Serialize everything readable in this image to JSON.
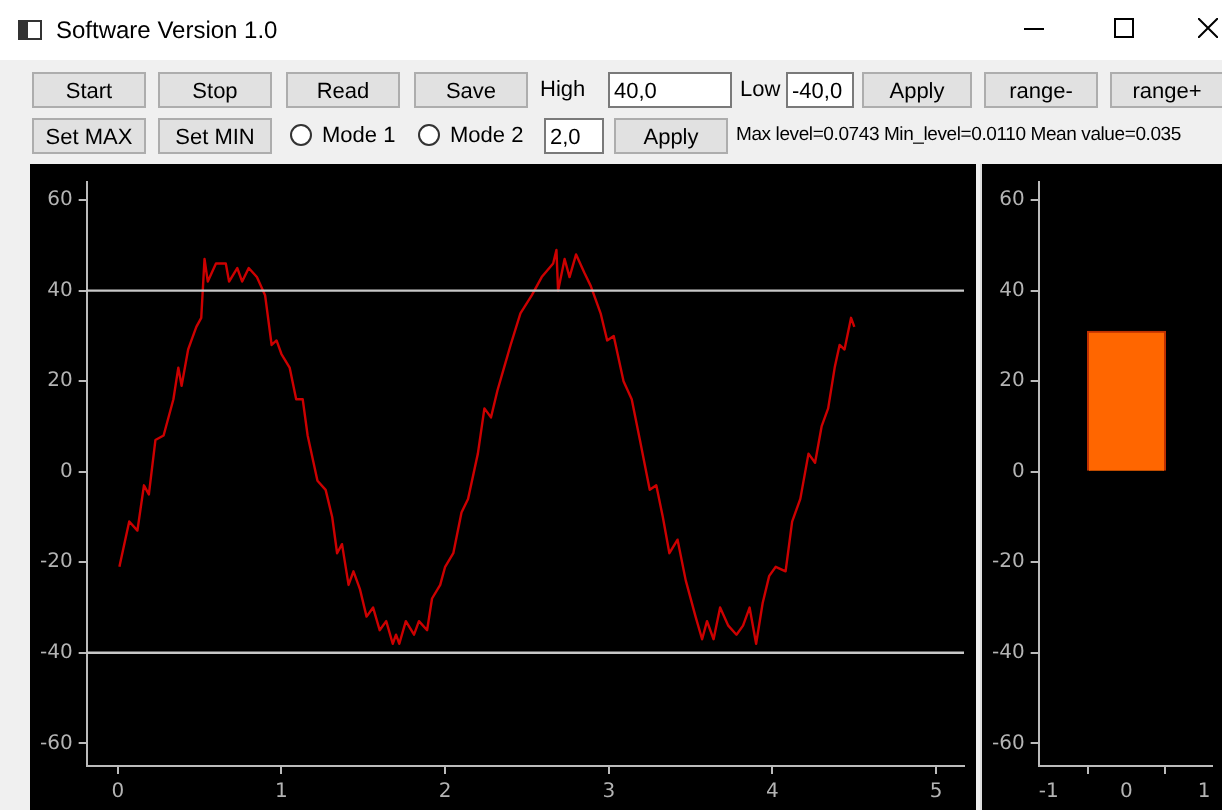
{
  "chart_data": [
    {
      "type": "line",
      "title": "Software Version 1.0",
      "annotations": [
        "Start",
        "Stop",
        "Read",
        "Save",
        "High",
        "40,0",
        "Low",
        "-40,0",
        "Apply",
        "range-",
        "range+",
        "Set MAX",
        "Set MIN",
        "Mode 1",
        "Mode 2",
        "2,0",
        "Apply",
        "Max level=0.0743 Min_level=0.0110 Mean value=0.035"
      ],
      "xlim": [
        -0.19,
        5.17
      ],
      "xticks": [
        0,
        1,
        2,
        3,
        4,
        5
      ],
      "ylim": [
        -65,
        64
      ],
      "yticks": [
        -60,
        -40,
        -20,
        0,
        20,
        40,
        60
      ],
      "ref_lines": [
        {
          "axis": "y",
          "value": 40,
          "color": "#c8c8c8"
        },
        {
          "axis": "y",
          "value": -40,
          "color": "#c8c8c8"
        }
      ],
      "series": [
        {
          "color": "#cc0000",
          "x": [
            0.01,
            0.07,
            0.12,
            0.16,
            0.19,
            0.23,
            0.28,
            0.34,
            0.37,
            0.39,
            0.43,
            0.45,
            0.48,
            0.51,
            0.53,
            0.55,
            0.6,
            0.66,
            0.68,
            0.73,
            0.76,
            0.8,
            0.85,
            0.9,
            0.94,
            0.97,
            1.0,
            1.05,
            1.09,
            1.13,
            1.16,
            1.22,
            1.27,
            1.31,
            1.34,
            1.37,
            1.41,
            1.44,
            1.48,
            1.52,
            1.56,
            1.6,
            1.64,
            1.68,
            1.7,
            1.72,
            1.76,
            1.81,
            1.84,
            1.89,
            1.92,
            1.97,
            2.0,
            2.05,
            2.1,
            2.14,
            2.2,
            2.24,
            2.28,
            2.32,
            2.36,
            2.4,
            2.46,
            2.53,
            2.59,
            2.66,
            2.68,
            2.69,
            2.73,
            2.76,
            2.8,
            2.85,
            2.89,
            2.95,
            2.99,
            3.03,
            3.09,
            3.14,
            3.19,
            3.25,
            3.29,
            3.33,
            3.37,
            3.42,
            3.47,
            3.53,
            3.57,
            3.6,
            3.64,
            3.68,
            3.73,
            3.78,
            3.82,
            3.86,
            3.9,
            3.94,
            3.98,
            4.02,
            4.08,
            4.12,
            4.17,
            4.22,
            4.26,
            4.3,
            4.34,
            4.38,
            4.41,
            4.44,
            4.48,
            4.5
          ],
          "values": [
            -21,
            -11,
            -13,
            -3,
            -5,
            7,
            8,
            16,
            23,
            19,
            27,
            29,
            32,
            34,
            47,
            42,
            46,
            46,
            42,
            45,
            42,
            45,
            43,
            39,
            28,
            29,
            26,
            23,
            16,
            16,
            8,
            -2,
            -4,
            -10,
            -18,
            -16,
            -25,
            -22,
            -26,
            -32,
            -30,
            -35,
            -33,
            -38,
            -36,
            -38,
            -33,
            -36,
            -33,
            -35,
            -28,
            -25,
            -21,
            -18,
            -9,
            -6,
            4,
            14,
            12,
            18,
            23,
            28,
            35,
            39,
            43,
            46,
            49,
            40,
            47,
            43,
            48,
            44,
            41,
            35,
            29,
            30,
            20,
            16,
            7,
            -4,
            -3,
            -10,
            -18,
            -15,
            -24,
            -32,
            -37,
            -33,
            -37,
            -30,
            -34,
            -36,
            -34,
            -30,
            -38,
            -29,
            -23,
            -21,
            -22,
            -11,
            -6,
            4,
            2,
            10,
            14,
            23,
            28,
            27,
            34,
            32
          ]
        }
      ]
    },
    {
      "type": "bar",
      "x": [
        0
      ],
      "xlim": [
        -1.13,
        1.1
      ],
      "xticks": [
        -1,
        0,
        1
      ],
      "ylim": [
        -65,
        64
      ],
      "yticks": [
        -60,
        -40,
        -20,
        0,
        20,
        40,
        60
      ],
      "series": [
        {
          "color": "#ff6600",
          "values": [
            31
          ]
        }
      ]
    }
  ]
}
